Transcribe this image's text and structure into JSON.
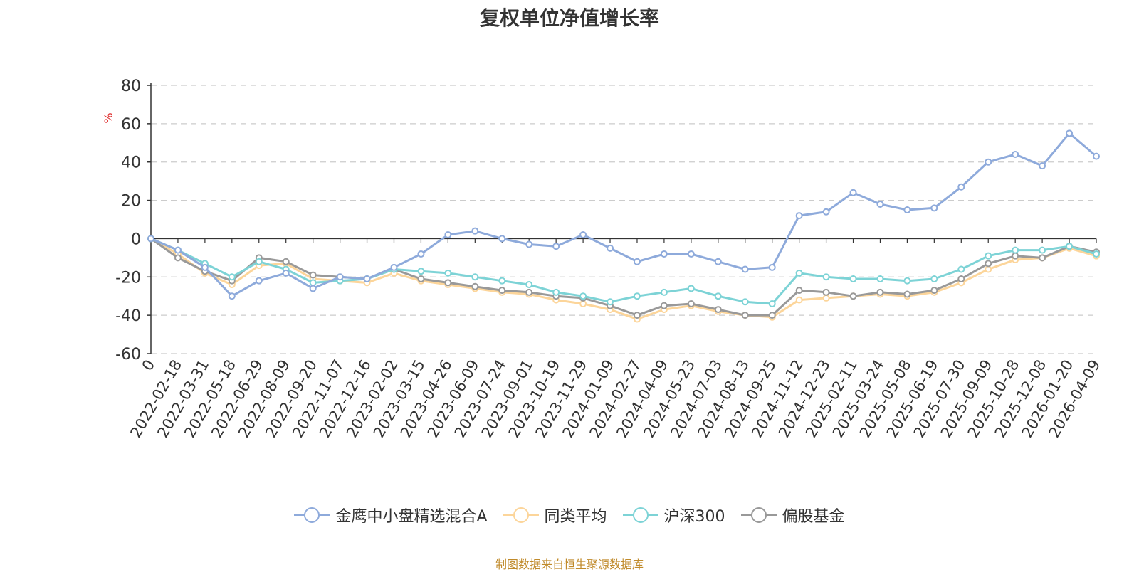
{
  "title": "复权单位净值增长率",
  "source_note": "制图数据来自恒生聚源数据库",
  "chart_data": {
    "type": "line",
    "title": "复权单位净值增长率",
    "ylabel": "%",
    "xlabel": "",
    "ylim": [
      -60,
      80
    ],
    "yticks": [
      80,
      60,
      40,
      20,
      0,
      -20,
      -40,
      -60
    ],
    "grid": true,
    "legend_position": "bottom",
    "x_tick_labels": [
      "0",
      "2022-02-18",
      "2022-03-31",
      "2022-05-18",
      "2022-06-29",
      "2022-08-09",
      "2022-09-20",
      "2022-11-07",
      "2022-12-16",
      "2023-02-02",
      "2023-03-15",
      "2023-04-26",
      "2023-06-09",
      "2023-07-24",
      "2023-09-01",
      "2023-10-19",
      "2023-11-29",
      "2024-01-09",
      "2024-02-27",
      "2024-04-09",
      "2024-05-23",
      "2024-07-03",
      "2024-08-13",
      "2024-09-25",
      "2024-11-12",
      "2024-12-23",
      "2025-02-11",
      "2025-03-24",
      "2025-05-08",
      "2025-06-19",
      "2025-07-30",
      "2025-09-09",
      "2025-10-28",
      "2025-12-08",
      "2026-01-20",
      "2026-04-09"
    ],
    "x": [
      "0",
      "2022-02-18",
      "2022-03-31",
      "2022-05-18",
      "2022-06-29",
      "2022-08-09",
      "2022-09-20",
      "2022-11-07",
      "2022-12-16",
      "2023-02-02",
      "2023-03-15",
      "2023-04-26",
      "2023-06-09",
      "2023-07-24",
      "2023-09-01",
      "2023-10-19",
      "2023-11-29",
      "2024-01-09",
      "2024-02-27",
      "2024-04-09",
      "2024-05-23",
      "2024-07-03",
      "2024-08-13",
      "2024-09-25",
      "2024-11-12",
      "2024-12-23",
      "2025-02-11",
      "2025-03-24",
      "2025-05-08",
      "2025-06-19",
      "2025-07-30",
      "2025-09-09",
      "2025-10-28",
      "2025-12-08",
      "2026-01-20",
      "2026-04-09"
    ],
    "series": [
      {
        "name": "金鹰中小盘精选混合A",
        "color": "#8eaadb",
        "values": [
          0,
          -6,
          -15,
          -30,
          -22,
          -18,
          -26,
          -20,
          -21,
          -15,
          -8,
          2,
          4,
          0,
          -3,
          -4,
          2,
          -5,
          -12,
          -8,
          -8,
          -12,
          -16,
          -15,
          12,
          14,
          24,
          18,
          15,
          16,
          27,
          40,
          44,
          38,
          55,
          43
        ]
      },
      {
        "name": "同类平均",
        "color": "#fcd59a",
        "values": [
          0,
          -8,
          -18,
          -24,
          -14,
          -13,
          -21,
          -22,
          -23,
          -18,
          -22,
          -24,
          -26,
          -28,
          -29,
          -32,
          -34,
          -37,
          -42,
          -37,
          -35,
          -38,
          -40,
          -41,
          -32,
          -31,
          -30,
          -29,
          -30,
          -28,
          -23,
          -16,
          -11,
          -10,
          -5,
          -9
        ]
      },
      {
        "name": "沪深300",
        "color": "#7dd3d6",
        "values": [
          0,
          -6,
          -13,
          -20,
          -12,
          -16,
          -23,
          -22,
          -21,
          -16,
          -17,
          -18,
          -20,
          -22,
          -24,
          -28,
          -30,
          -33,
          -30,
          -28,
          -26,
          -30,
          -33,
          -34,
          -18,
          -20,
          -21,
          -21,
          -22,
          -21,
          -16,
          -9,
          -6,
          -6,
          -4,
          -8
        ]
      },
      {
        "name": "偏股基金",
        "color": "#999999",
        "values": [
          0,
          -10,
          -17,
          -22,
          -10,
          -12,
          -19,
          -20,
          -21,
          -16,
          -21,
          -23,
          -25,
          -27,
          -28,
          -30,
          -31,
          -35,
          -40,
          -35,
          -34,
          -37,
          -40,
          -40,
          -27,
          -28,
          -30,
          -28,
          -29,
          -27,
          -21,
          -13,
          -9,
          -10,
          -4,
          -7
        ]
      }
    ]
  }
}
